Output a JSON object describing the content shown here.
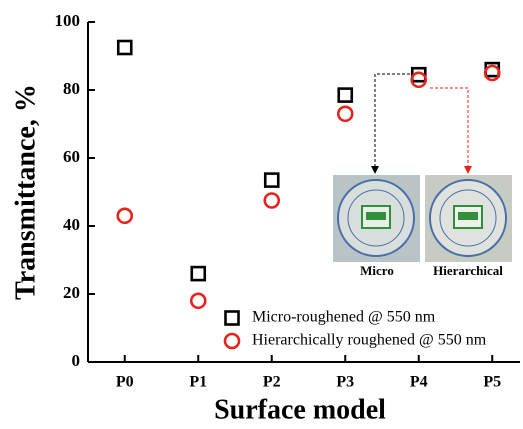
{
  "chart_data": {
    "type": "scatter",
    "xlabel": "Surface model",
    "ylabel": "Transmittance, %",
    "categories": [
      "P0",
      "P1",
      "P2",
      "P3",
      "P4",
      "P5"
    ],
    "series": [
      {
        "name": "Micro-roughened @ 550 nm",
        "color": "#000000",
        "marker": "square",
        "values": [
          92.5,
          26,
          53.5,
          78.5,
          84.5,
          86
        ]
      },
      {
        "name": "Hierarchically roughened @ 550 nm",
        "color": "#e8231d",
        "marker": "circle",
        "values": [
          43,
          18,
          47.5,
          73,
          83,
          85
        ]
      }
    ],
    "ylim": [
      0,
      100
    ],
    "yticks": [
      0,
      20,
      40,
      60,
      80,
      100
    ],
    "legend": "lower right",
    "annotations": [
      "Micro",
      "Hierarchical"
    ]
  }
}
